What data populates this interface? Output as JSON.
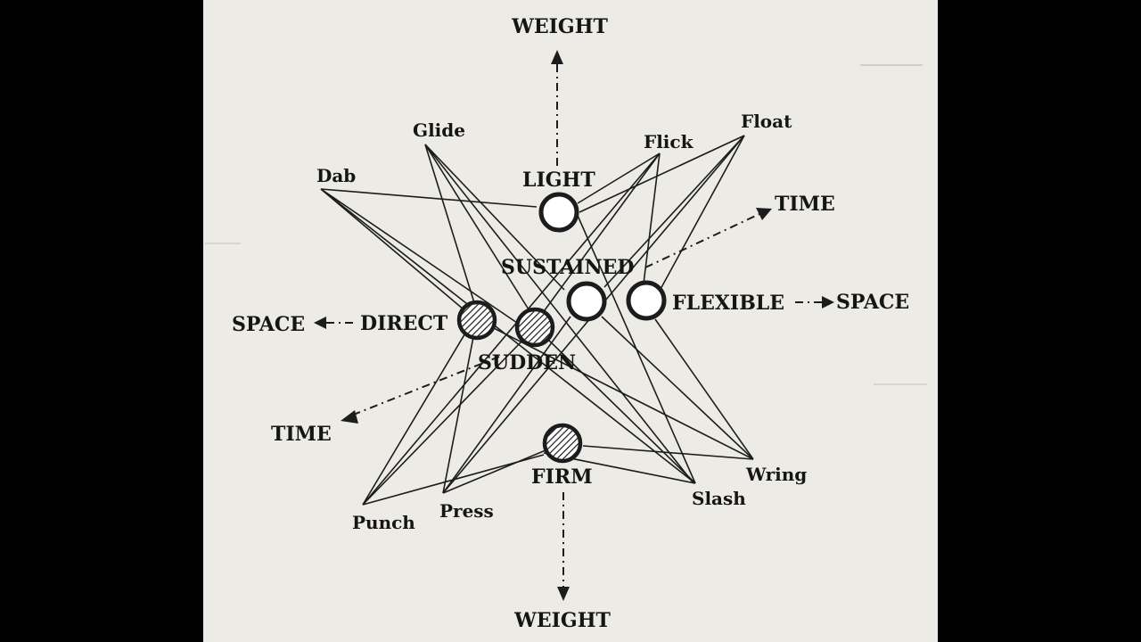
{
  "labels": {
    "weight_top": "WEIGHT",
    "weight_bottom": "WEIGHT",
    "time_right": "TIME",
    "time_left": "TIME",
    "space_left": "SPACE",
    "space_right": "SPACE",
    "light": "LIGHT",
    "sustained": "SUSTAINED",
    "flexible": "FLEXIBLE",
    "direct": "DIRECT",
    "sudden": "SUDDEN",
    "firm": "FIRM",
    "glide": "Glide",
    "flick": "Flick",
    "float": "Float",
    "dab": "Dab",
    "punch": "Punch",
    "press": "Press",
    "slash": "Slash",
    "wring": "Wring"
  },
  "colors": {
    "page": "#ecebe6",
    "ink": "#1c1c1c",
    "frame": "#000000"
  }
}
